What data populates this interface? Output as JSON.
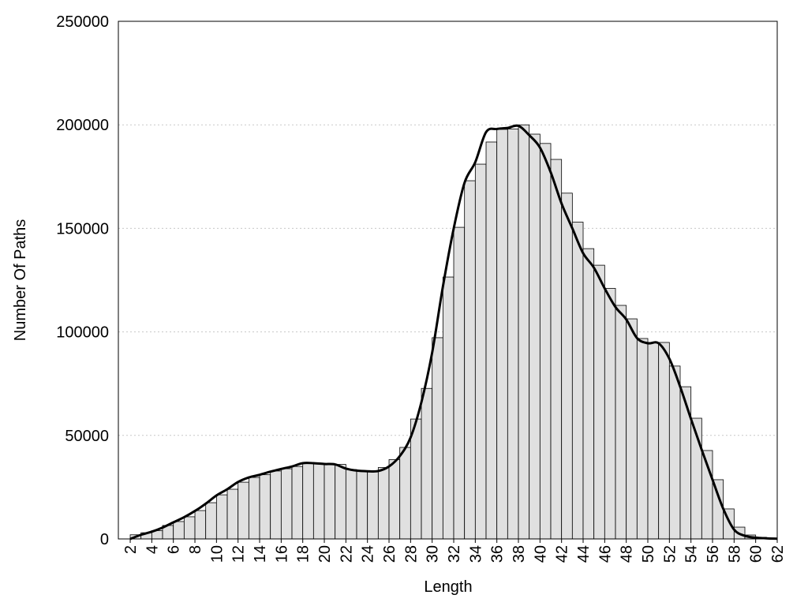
{
  "chart_data": {
    "type": "histogram",
    "x_label": "Length",
    "y_label": "Number Of Paths",
    "bins": [
      2,
      3,
      4,
      5,
      6,
      7,
      8,
      9,
      10,
      11,
      12,
      13,
      14,
      15,
      16,
      17,
      18,
      19,
      20,
      21,
      22,
      23,
      24,
      25,
      26,
      27,
      28,
      29,
      30,
      31,
      32,
      33,
      34,
      35,
      36,
      37,
      38,
      39,
      40,
      41,
      42,
      43,
      44,
      45,
      46,
      47,
      48,
      49,
      50,
      51,
      52,
      53,
      54,
      55,
      56,
      57,
      58,
      59,
      60,
      61,
      62
    ],
    "values": [
      2000,
      3000,
      4000,
      6500,
      8400,
      10700,
      13700,
      17500,
      21300,
      24000,
      27400,
      29700,
      31000,
      32800,
      33900,
      35000,
      36600,
      36600,
      36000,
      36000,
      33500,
      33000,
      32600,
      34500,
      38300,
      44200,
      57900,
      72700,
      97200,
      126500,
      150500,
      173000,
      181000,
      191700,
      197800,
      198000,
      200000,
      195500,
      191000,
      183300,
      167000,
      153000,
      140200,
      132200,
      121000,
      112800,
      106300,
      96800,
      94900,
      94900,
      83500,
      73500,
      58300,
      42700,
      28600,
      14500,
      5700,
      1900,
      800,
      400
    ],
    "bar_color": "#e0e0e0",
    "line": {
      "x": [
        2,
        3,
        4,
        5,
        6,
        7,
        8,
        9,
        10,
        11,
        12,
        13,
        14,
        15,
        16,
        17,
        18,
        19,
        20,
        21,
        22,
        23,
        24,
        25,
        26,
        27,
        28,
        29,
        30,
        31,
        32,
        33,
        34,
        35,
        36,
        37,
        38,
        39,
        40,
        41,
        42,
        43,
        44,
        45,
        46,
        47,
        48,
        49,
        50,
        51,
        52,
        53,
        54,
        55,
        56,
        57,
        58,
        59,
        60,
        61,
        62
      ],
      "values": [
        0,
        2000,
        3500,
        5500,
        8000,
        10500,
        13500,
        17000,
        21000,
        24000,
        27500,
        29700,
        31000,
        32500,
        33800,
        35000,
        36600,
        36600,
        36200,
        36000,
        34000,
        33000,
        32700,
        32800,
        35000,
        40000,
        49000,
        66000,
        90000,
        122000,
        150000,
        172000,
        182000,
        196500,
        198000,
        198500,
        199500,
        195000,
        189000,
        177000,
        162000,
        150000,
        138000,
        131000,
        121000,
        112000,
        106000,
        97000,
        94500,
        94500,
        87000,
        73500,
        58000,
        43000,
        28600,
        14500,
        4500,
        1500,
        600,
        300,
        100
      ],
      "color": "#000000"
    },
    "xlim": [
      0.9,
      62
    ],
    "ylim": [
      0,
      250000
    ],
    "xticks": [
      2,
      4,
      6,
      8,
      10,
      12,
      14,
      16,
      18,
      20,
      22,
      24,
      26,
      28,
      30,
      32,
      34,
      36,
      38,
      40,
      42,
      44,
      46,
      48,
      50,
      52,
      54,
      56,
      58,
      60,
      62
    ],
    "yticks": [
      0,
      50000,
      100000,
      150000,
      200000,
      250000
    ],
    "grid": true
  }
}
